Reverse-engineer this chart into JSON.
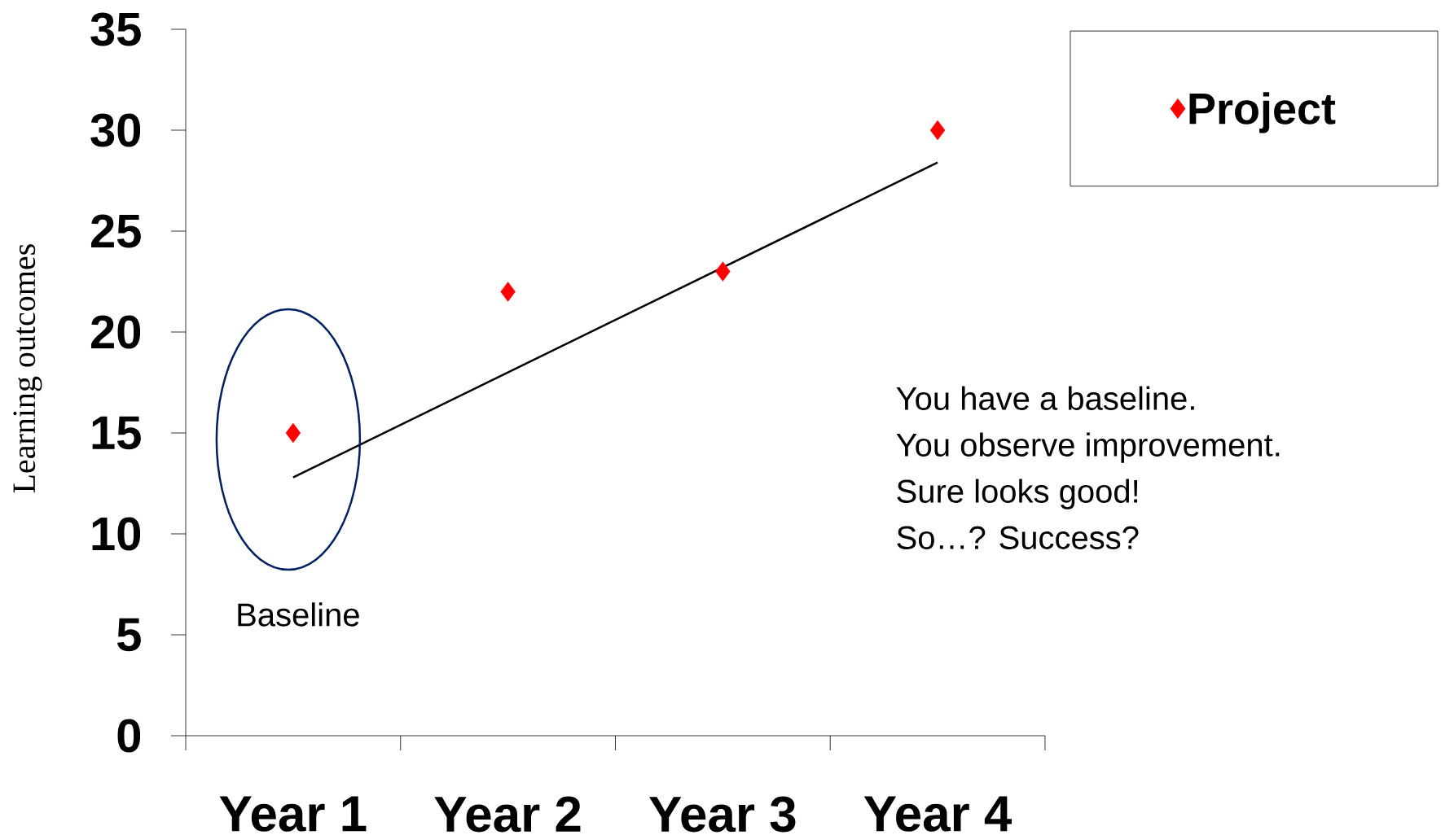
{
  "chart_data": {
    "type": "scatter",
    "ylabel": "Learning outcomes",
    "categories": [
      "Year 1",
      "Year 2",
      "Year 3",
      "Year 4"
    ],
    "series": [
      {
        "name": "Project",
        "color": "#ff0000",
        "marker": "diamond",
        "values": [
          15,
          22,
          23,
          30
        ]
      },
      {
        "type": "line",
        "color": "#000000",
        "line_style": "solid",
        "values": [
          12.8,
          18,
          23.2,
          28.4
        ]
      }
    ],
    "ylim": [
      0,
      35
    ],
    "yticks": [
      0,
      5,
      10,
      15,
      20,
      25,
      30,
      35
    ],
    "legend": "top right",
    "annotations": [
      "Baseline",
      "You have a baseline.",
      "You observe improvement.",
      "Sure looks good!",
      "So…?  Success?"
    ]
  }
}
